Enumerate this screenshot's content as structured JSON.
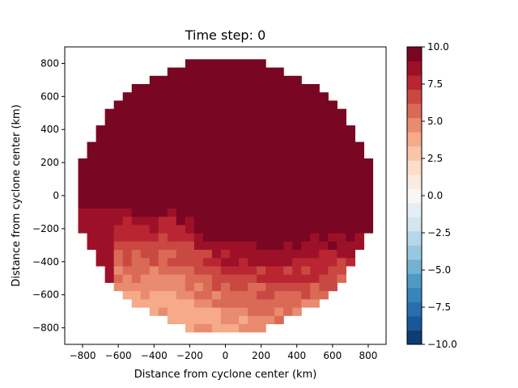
{
  "chart_data": {
    "type": "heatmap",
    "title": "Time step: 0",
    "xlabel": "Distance from cyclone center (km)",
    "ylabel": "Distance from cyclone center (km)",
    "xlim": [
      -900,
      900
    ],
    "ylim": [
      -900,
      900
    ],
    "x_ticks": [
      -800,
      -600,
      -400,
      -200,
      0,
      200,
      400,
      600,
      800
    ],
    "y_ticks": [
      -800,
      -600,
      -400,
      -200,
      0,
      200,
      400,
      600,
      800
    ],
    "grid": false,
    "cell_size_km": 50,
    "domain_radius_km": 825,
    "colorbar": {
      "min": -10.0,
      "max": 10.0,
      "ticks": [
        -10.0,
        -7.5,
        -5.0,
        -2.5,
        0.0,
        2.5,
        5.0,
        7.5,
        10.0
      ],
      "tick_labels": [
        "−10.0",
        "−7.5",
        "−5.0",
        "−2.5",
        "0.0",
        "2.5",
        "5.0",
        "7.5",
        "10.0"
      ],
      "levels": 21,
      "colormap": "RdBu_r",
      "colors": [
        "#053061",
        "#2166ac",
        "#4393c3",
        "#92c5de",
        "#d1e5f0",
        "#f7f7f7",
        "#fddbc7",
        "#f4a582",
        "#d6604d",
        "#b2182b",
        "#67001f"
      ]
    },
    "field_description": "Saturated (10.0) over most of the disk; values decrease toward 4–5 in the south-southwest sector.",
    "gradient_zone": {
      "boundary_points": [
        [
          -850,
          -25
        ],
        [
          -300,
          -25
        ],
        [
          0,
          -220
        ],
        [
          300,
          -260
        ],
        [
          620,
          -200
        ],
        [
          760,
          -170
        ]
      ],
      "far_value": 4.0,
      "near_value": 10.0,
      "decay_km": 600
    }
  }
}
